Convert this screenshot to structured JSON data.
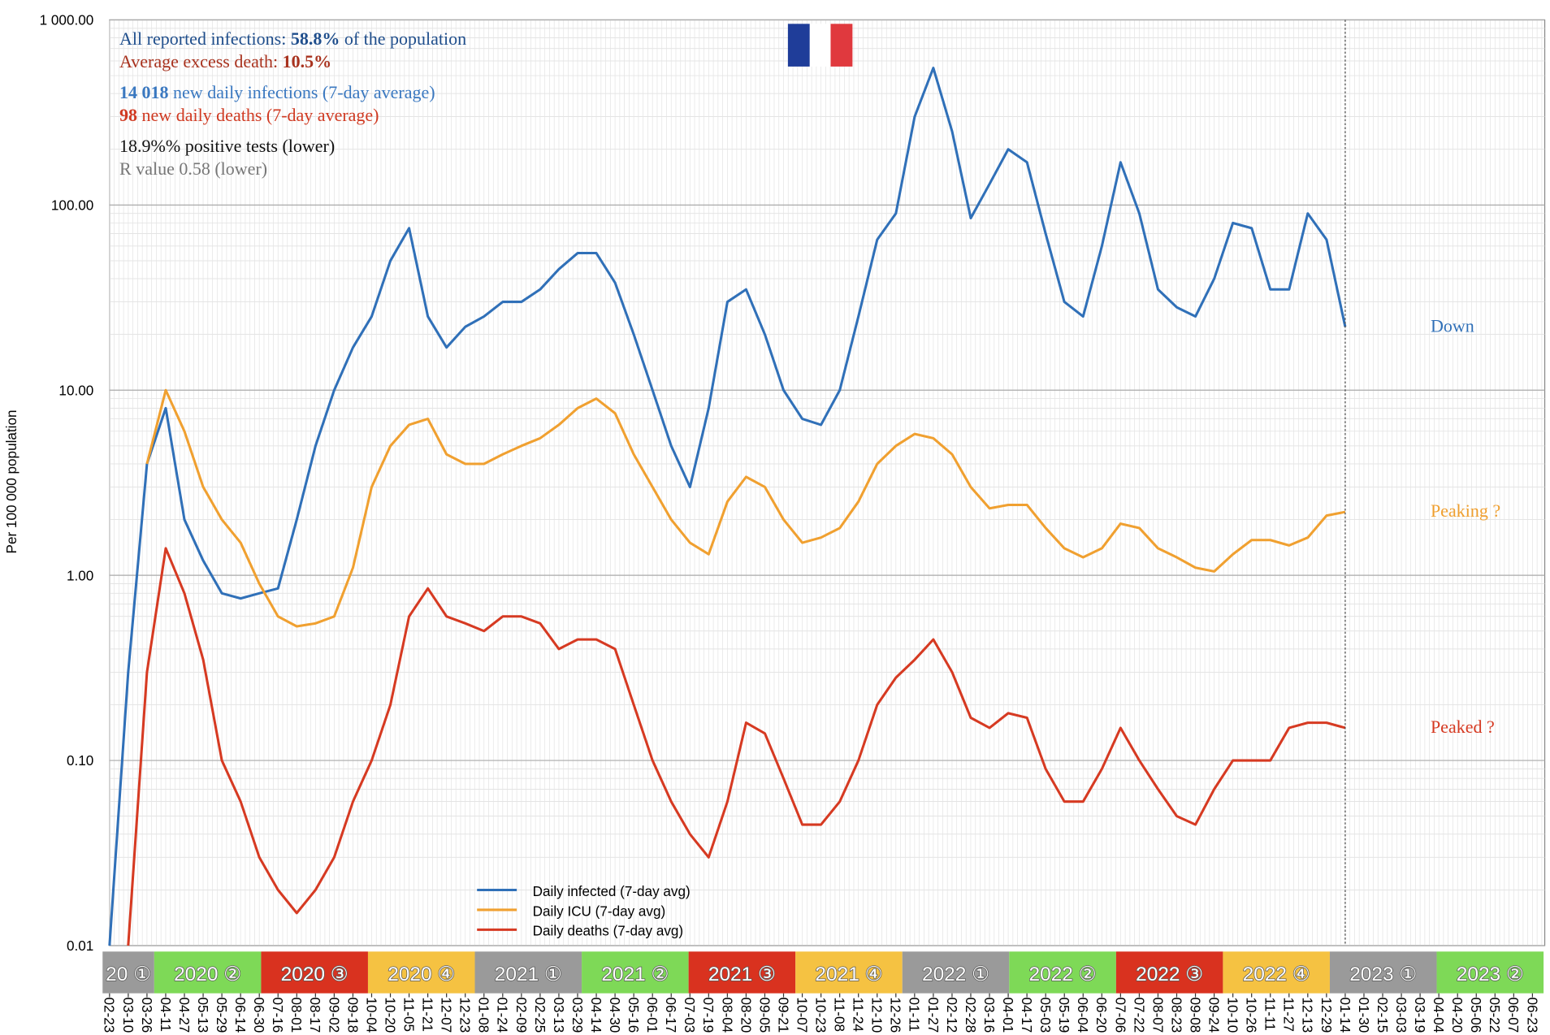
{
  "chart_data": {
    "type": "line",
    "y_label": "Per 100 000 population",
    "log_scale": true,
    "grid": true,
    "ylim": [
      0.01,
      1000
    ],
    "yticks": [
      {
        "value": 1000,
        "label": "1 000.00"
      },
      {
        "value": 100,
        "label": "100.00"
      },
      {
        "value": 10,
        "label": "10.00"
      },
      {
        "value": 1,
        "label": "1.00"
      },
      {
        "value": 0.1,
        "label": "0.10"
      },
      {
        "value": 0.01,
        "label": "0.01"
      }
    ],
    "x": [
      "02-23",
      "03-10",
      "03-26",
      "04-11",
      "04-27",
      "05-13",
      "05-29",
      "06-14",
      "06-30",
      "07-16",
      "08-01",
      "08-17",
      "09-02",
      "09-18",
      "10-04",
      "10-20",
      "11-05",
      "11-21",
      "12-07",
      "12-23",
      "01-08",
      "01-24",
      "02-09",
      "02-25",
      "03-13",
      "03-29",
      "04-14",
      "04-30",
      "05-16",
      "06-01",
      "06-17",
      "07-03",
      "07-19",
      "08-04",
      "08-20",
      "09-05",
      "09-21",
      "10-07",
      "10-23",
      "11-08",
      "11-24",
      "12-10",
      "12-26",
      "01-11",
      "01-27",
      "02-12",
      "02-28",
      "03-16",
      "04-01",
      "04-17",
      "05-03",
      "05-19",
      "06-04",
      "06-20",
      "07-06",
      "07-22",
      "08-07",
      "08-23",
      "09-08",
      "09-24",
      "10-10",
      "10-26",
      "11-11",
      "11-27",
      "12-13",
      "12-29",
      "01-14",
      "01-30",
      "02-15",
      "03-03",
      "03-19",
      "04-04",
      "04-20",
      "05-06",
      "05-22",
      "06-07",
      "06-23"
    ],
    "series": [
      {
        "name": "Daily infected (7-day avg)",
        "color": "#3070b8",
        "values": [
          0.01,
          0.3,
          4,
          8,
          2,
          1.2,
          0.8,
          0.75,
          0.8,
          0.85,
          2,
          5,
          10,
          17,
          25,
          50,
          75,
          25,
          17,
          22,
          25,
          30,
          30,
          35,
          45,
          55,
          55,
          38,
          20,
          10,
          5,
          3,
          8,
          30,
          35,
          20,
          10,
          7,
          6.5,
          10,
          25,
          65,
          90,
          300,
          550,
          250,
          85,
          130,
          200,
          170,
          70,
          30,
          25,
          60,
          170,
          90,
          35,
          28,
          25,
          40,
          80,
          75,
          35,
          35,
          90,
          65,
          22,
          null,
          null,
          null,
          null,
          null,
          null,
          null,
          null,
          null,
          null
        ],
        "end_label": "Down"
      },
      {
        "name": "Daily ICU (7-day avg)",
        "color": "#f0a030",
        "values": [
          null,
          null,
          4,
          10,
          6,
          3,
          2,
          1.5,
          0.9,
          0.6,
          0.53,
          0.55,
          0.6,
          1.1,
          3,
          5,
          6.5,
          7,
          4.5,
          4,
          4,
          4.5,
          5,
          5.5,
          6.5,
          8,
          9,
          7.5,
          4.5,
          3,
          2,
          1.5,
          1.3,
          2.5,
          3.4,
          3,
          2,
          1.5,
          1.6,
          1.8,
          2.5,
          4,
          5,
          5.8,
          5.5,
          4.5,
          3,
          2.3,
          2.4,
          2.4,
          1.8,
          1.4,
          1.25,
          1.4,
          1.9,
          1.8,
          1.4,
          1.25,
          1.1,
          1.05,
          1.3,
          1.55,
          1.55,
          1.45,
          1.6,
          2.1,
          2.2,
          null,
          null,
          null,
          null,
          null,
          null,
          null,
          null,
          null,
          null
        ],
        "end_label": "Peaking ?"
      },
      {
        "name": "Daily deaths (7-day avg)",
        "color": "#d63a22",
        "values": [
          null,
          0.01,
          0.3,
          1.4,
          0.8,
          0.35,
          0.1,
          0.06,
          0.03,
          0.02,
          0.015,
          0.02,
          0.03,
          0.06,
          0.1,
          0.2,
          0.6,
          0.85,
          0.6,
          0.55,
          0.5,
          0.6,
          0.6,
          0.55,
          0.4,
          0.45,
          0.45,
          0.4,
          0.2,
          0.1,
          0.06,
          0.04,
          0.03,
          0.06,
          0.16,
          0.14,
          0.08,
          0.045,
          0.045,
          0.06,
          0.1,
          0.2,
          0.28,
          0.35,
          0.45,
          0.3,
          0.17,
          0.15,
          0.18,
          0.17,
          0.09,
          0.06,
          0.06,
          0.09,
          0.15,
          0.1,
          0.07,
          0.05,
          0.045,
          0.07,
          0.1,
          0.1,
          0.1,
          0.15,
          0.16,
          0.16,
          0.15,
          null,
          null,
          null,
          null,
          null,
          null,
          null,
          null,
          null,
          null
        ],
        "end_label": "Peaked ?"
      }
    ],
    "annotations": [
      {
        "parts": [
          "All reported infections: ",
          "58.8%",
          " of the population"
        ],
        "bold": [
          1
        ],
        "color": "#1f4e8c"
      },
      {
        "parts": [
          "Average excess death: ",
          "10.5%"
        ],
        "bold": [
          1
        ],
        "color": "#a8321e"
      },
      {
        "parts": [
          "14 018",
          " new daily infections (7-day average)"
        ],
        "bold": [
          0
        ],
        "color": "#3a78c0"
      },
      {
        "parts": [
          "98",
          " new daily deaths (7-day average)"
        ],
        "bold": [
          0
        ],
        "color": "#d03a22"
      },
      {
        "parts": [
          "18.9%% positive tests (lower)"
        ],
        "bold": [],
        "color": "#111111"
      },
      {
        "parts": [
          "R value 0.58 (lower)"
        ],
        "bold": [],
        "color": "#777777"
      }
    ],
    "quarters": [
      {
        "label": "20 ①",
        "color": "#9a9a9a"
      },
      {
        "label": "2020 ②",
        "color": "#7ed957"
      },
      {
        "label": "2020 ③",
        "color": "#d9321f"
      },
      {
        "label": "2020 ④",
        "color": "#f5c242"
      },
      {
        "label": "2021 ①",
        "color": "#9a9a9a"
      },
      {
        "label": "2021 ②",
        "color": "#7ed957"
      },
      {
        "label": "2021 ③",
        "color": "#d9321f"
      },
      {
        "label": "2021 ④",
        "color": "#f5c242"
      },
      {
        "label": "2022 ①",
        "color": "#9a9a9a"
      },
      {
        "label": "2022 ②",
        "color": "#7ed957"
      },
      {
        "label": "2022 ③",
        "color": "#d9321f"
      },
      {
        "label": "2022 ④",
        "color": "#f5c242"
      },
      {
        "label": "2023 ①",
        "color": "#9a9a9a"
      },
      {
        "label": "2023 ②",
        "color": "#7ed957"
      }
    ]
  }
}
